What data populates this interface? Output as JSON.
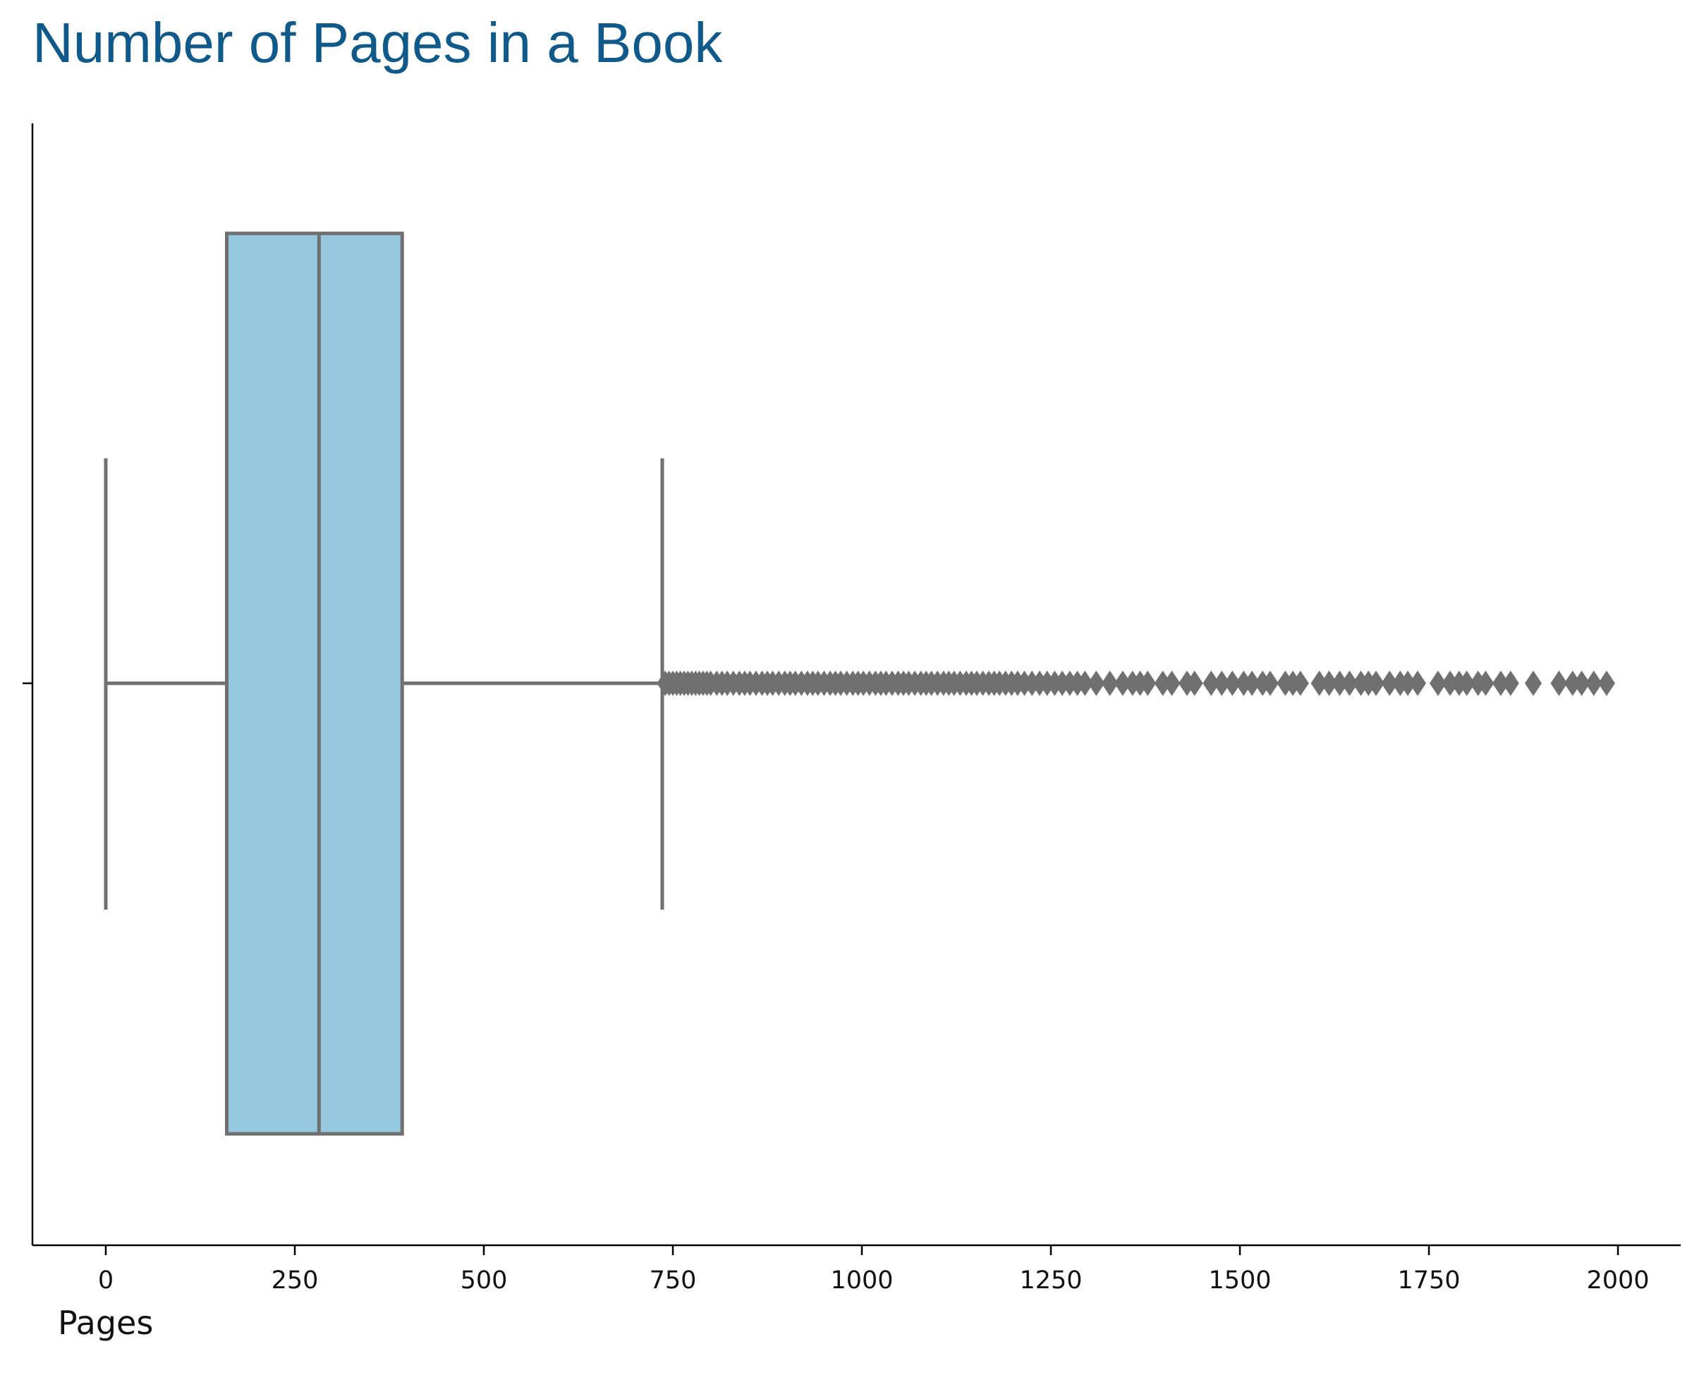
{
  "chart_data": {
    "type": "box",
    "title": "Number of Pages in a Book",
    "xlabel": "Pages",
    "ylabel": "",
    "orientation": "horizontal",
    "xlim": [
      -97,
      2083
    ],
    "xticks": [
      0,
      250,
      500,
      750,
      1000,
      1250,
      1500,
      1750,
      2000
    ],
    "grid": false,
    "colors": {
      "box_fill": "#96c9e0",
      "box_edge": "#707070",
      "title": "#0f5a8a",
      "axis": "#000000"
    },
    "box": {
      "whisker_low": 0,
      "q1": 160,
      "median": 282,
      "q3": 392,
      "whisker_high": 736,
      "outliers": [
        740,
        745,
        750,
        755,
        760,
        765,
        770,
        775,
        780,
        785,
        790,
        795,
        800,
        808,
        815,
        822,
        830,
        838,
        845,
        852,
        860,
        868,
        875,
        882,
        890,
        898,
        905,
        912,
        920,
        928,
        935,
        942,
        950,
        958,
        965,
        972,
        980,
        988,
        995,
        1002,
        1010,
        1018,
        1025,
        1032,
        1040,
        1048,
        1055,
        1062,
        1070,
        1078,
        1085,
        1092,
        1100,
        1108,
        1115,
        1122,
        1130,
        1138,
        1145,
        1152,
        1160,
        1168,
        1175,
        1182,
        1190,
        1198,
        1206,
        1215,
        1225,
        1235,
        1245,
        1255,
        1265,
        1275,
        1285,
        1295,
        1310,
        1328,
        1345,
        1358,
        1368,
        1378,
        1398,
        1410,
        1430,
        1440,
        1462,
        1476,
        1490,
        1505,
        1516,
        1530,
        1540,
        1560,
        1570,
        1580,
        1605,
        1618,
        1632,
        1645,
        1660,
        1670,
        1680,
        1698,
        1712,
        1722,
        1735,
        1762,
        1778,
        1790,
        1800,
        1815,
        1825,
        1845,
        1858,
        1888,
        1922,
        1940,
        1952,
        1968,
        1985
      ]
    }
  }
}
